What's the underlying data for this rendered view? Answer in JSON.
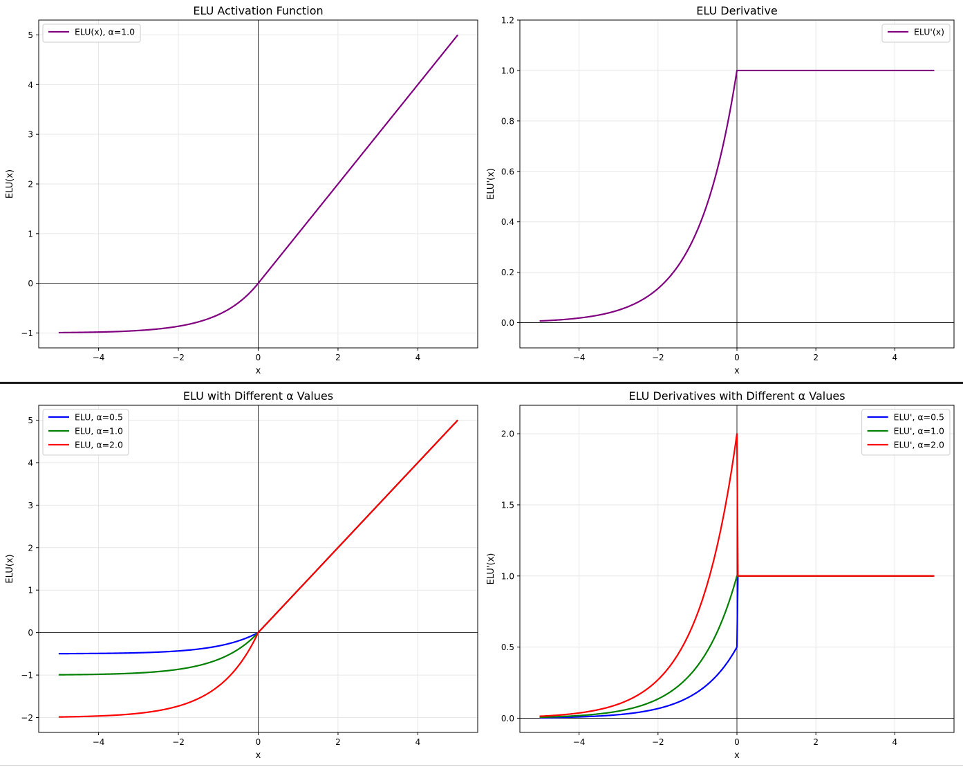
{
  "chart_data": [
    {
      "type": "line",
      "title": "ELU Activation Function",
      "xlabel": "x",
      "ylabel": "ELU(x)",
      "xlim": [
        -5.5,
        5.5
      ],
      "ylim": [
        -1.3,
        5.3
      ],
      "xticks": [
        -4,
        -2,
        0,
        2,
        4
      ],
      "yticks": [
        -1,
        0,
        1,
        2,
        3,
        4,
        5
      ],
      "ytick_format": "int",
      "grid": true,
      "legend_position": "upper-left",
      "x_range": [
        -5,
        5
      ],
      "series": [
        {
          "name": "ELU(x), α=1.0",
          "function": "elu",
          "alpha": 1.0,
          "color": "#800080"
        }
      ]
    },
    {
      "type": "line",
      "title": "ELU Derivative",
      "xlabel": "x",
      "ylabel": "ELU'(x)",
      "xlim": [
        -5.5,
        5.5
      ],
      "ylim": [
        -0.1,
        1.2
      ],
      "xticks": [
        -4,
        -2,
        0,
        2,
        4
      ],
      "yticks": [
        0.0,
        0.2,
        0.4,
        0.6,
        0.8,
        1.0,
        1.2
      ],
      "ytick_format": "1dp",
      "grid": true,
      "legend_position": "upper-right",
      "x_range": [
        -5,
        5
      ],
      "series": [
        {
          "name": "ELU'(x)",
          "function": "elu_derivative",
          "alpha": 1.0,
          "color": "#800080"
        }
      ]
    },
    {
      "type": "line",
      "title": "ELU with Different α Values",
      "xlabel": "x",
      "ylabel": "ELU(x)",
      "xlim": [
        -5.5,
        5.5
      ],
      "ylim": [
        -2.35,
        5.35
      ],
      "xticks": [
        -4,
        -2,
        0,
        2,
        4
      ],
      "yticks": [
        -2,
        -1,
        0,
        1,
        2,
        3,
        4,
        5
      ],
      "ytick_format": "int",
      "grid": true,
      "legend_position": "upper-left",
      "x_range": [
        -5,
        5
      ],
      "series": [
        {
          "name": "ELU, α=0.5",
          "function": "elu",
          "alpha": 0.5,
          "color": "#0000ff"
        },
        {
          "name": "ELU, α=1.0",
          "function": "elu",
          "alpha": 1.0,
          "color": "#008000"
        },
        {
          "name": "ELU, α=2.0",
          "function": "elu",
          "alpha": 2.0,
          "color": "#ff0000"
        }
      ]
    },
    {
      "type": "line",
      "title": "ELU Derivatives with Different α Values",
      "xlabel": "x",
      "ylabel": "ELU'(x)",
      "xlim": [
        -5.5,
        5.5
      ],
      "ylim": [
        -0.1,
        2.2
      ],
      "xticks": [
        -4,
        -2,
        0,
        2,
        4
      ],
      "yticks": [
        0.0,
        0.5,
        1.0,
        1.5,
        2.0
      ],
      "ytick_format": "1dp",
      "grid": true,
      "legend_position": "upper-right",
      "x_range": [
        -5,
        5
      ],
      "series": [
        {
          "name": "ELU', α=0.5",
          "function": "elu_derivative",
          "alpha": 0.5,
          "color": "#0000ff"
        },
        {
          "name": "ELU', α=1.0",
          "function": "elu_derivative",
          "alpha": 1.0,
          "color": "#008000"
        },
        {
          "name": "ELU', α=2.0",
          "function": "elu_derivative",
          "alpha": 2.0,
          "color": "#ff0000"
        }
      ]
    }
  ]
}
